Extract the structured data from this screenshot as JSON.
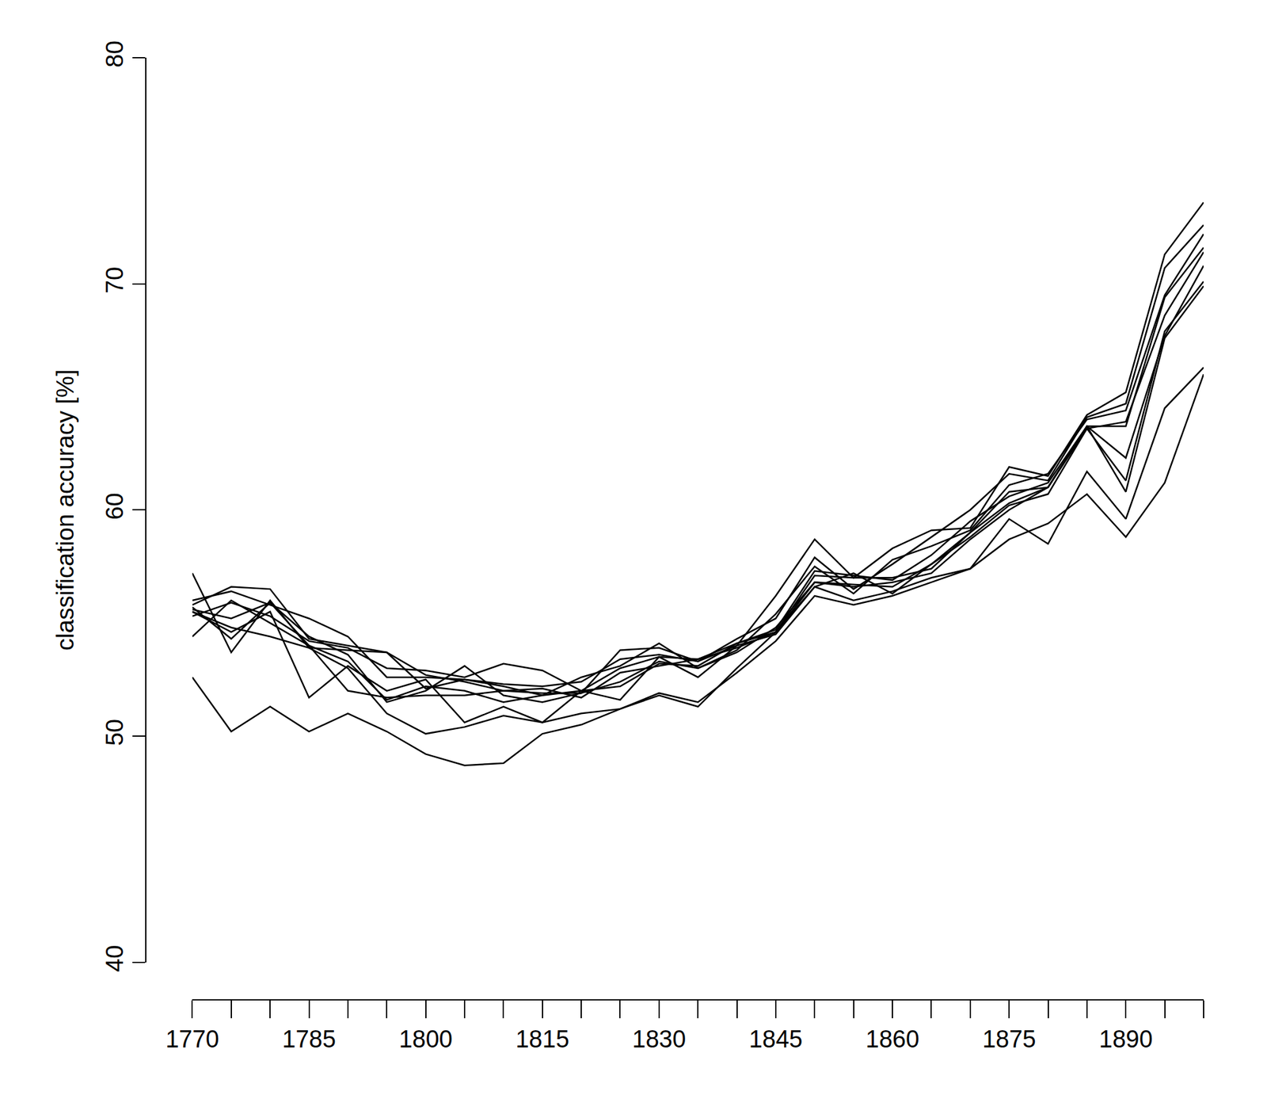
{
  "chart_data": {
    "type": "line",
    "y_label": "classification accuracy [%]",
    "color": "#000000",
    "x": [
      1770,
      1775,
      1780,
      1785,
      1790,
      1795,
      1800,
      1805,
      1810,
      1815,
      1820,
      1825,
      1830,
      1835,
      1840,
      1845,
      1850,
      1855,
      1860,
      1865,
      1870,
      1875,
      1880,
      1885,
      1890,
      1895,
      1900
    ],
    "xlim": [
      1770,
      1900
    ],
    "xticks": [
      1770,
      1785,
      1800,
      1815,
      1830,
      1845,
      1860,
      1875,
      1890
    ],
    "ylim": [
      40,
      80
    ],
    "yticks": [
      40,
      50,
      60,
      70,
      80
    ],
    "grid": false,
    "series": [
      {
        "values": [
          52.6,
          50.2,
          51.3,
          50.2,
          51.0,
          50.2,
          49.2,
          48.7,
          48.8,
          50.1,
          50.5,
          51.2,
          51.9,
          51.5,
          52.8,
          54.2,
          56.2,
          55.8,
          56.2,
          56.8,
          57.4,
          58.7,
          59.4,
          60.7,
          58.8,
          61.2,
          66.0
        ]
      },
      {
        "values": [
          55.5,
          54.8,
          54.4,
          53.9,
          53.0,
          51.0,
          50.1,
          50.4,
          50.9,
          50.6,
          51.0,
          51.2,
          51.8,
          51.3,
          53.0,
          54.6,
          56.6,
          56.0,
          56.4,
          57.0,
          57.4,
          59.6,
          58.5,
          61.7,
          59.6,
          64.5,
          66.3
        ]
      },
      {
        "values": [
          55.8,
          56.6,
          56.5,
          54.3,
          54.0,
          53.7,
          52.7,
          52.4,
          52.0,
          51.9,
          51.9,
          53.8,
          53.9,
          53.3,
          54.0,
          56.2,
          58.7,
          57.0,
          58.3,
          59.1,
          59.2,
          61.9,
          61.5,
          64.2,
          65.2,
          71.3,
          73.6
        ]
      },
      {
        "values": [
          56.0,
          56.4,
          55.8,
          55.2,
          54.4,
          52.6,
          52.6,
          52.5,
          52.3,
          52.2,
          52.4,
          53.4,
          53.6,
          53.3,
          54.3,
          55.2,
          57.9,
          56.5,
          57.6,
          58.8,
          60.0,
          61.6,
          61.3,
          64.1,
          64.7,
          70.7,
          72.6
        ]
      },
      {
        "values": [
          57.2,
          53.7,
          56.0,
          53.9,
          53.8,
          53.7,
          52.1,
          52.5,
          52.2,
          51.8,
          52.6,
          53.1,
          54.1,
          53.0,
          53.8,
          55.4,
          57.5,
          56.3,
          57.8,
          58.4,
          59.1,
          61.1,
          61.6,
          64.0,
          64.4,
          69.5,
          72.2
        ]
      },
      {
        "values": [
          55.3,
          55.9,
          55.3,
          54.2,
          53.9,
          53.0,
          52.9,
          52.6,
          53.2,
          52.9,
          52.0,
          53.0,
          53.5,
          53.4,
          54.1,
          54.7,
          57.3,
          57.1,
          56.9,
          58.0,
          59.5,
          60.6,
          61.2,
          63.7,
          63.7,
          69.4,
          71.6
        ]
      },
      {
        "values": [
          54.4,
          56.0,
          55.0,
          54.0,
          53.3,
          51.6,
          52.2,
          52.0,
          51.5,
          51.8,
          52.0,
          52.2,
          53.2,
          53.1,
          54.1,
          54.6,
          57.1,
          57.0,
          57.0,
          57.4,
          59.0,
          60.8,
          61.0,
          63.6,
          63.9,
          68.6,
          71.4
        ]
      },
      {
        "values": [
          55.7,
          54.3,
          55.9,
          54.4,
          53.6,
          51.5,
          52.0,
          53.1,
          51.8,
          51.5,
          51.9,
          52.4,
          53.3,
          53.0,
          53.7,
          54.8,
          56.8,
          56.7,
          56.6,
          57.6,
          59.0,
          60.3,
          61.0,
          63.7,
          62.3,
          67.7,
          70.8
        ]
      },
      {
        "values": [
          55.5,
          54.6,
          55.5,
          51.7,
          53.1,
          52.0,
          52.5,
          50.6,
          51.3,
          50.6,
          52.0,
          51.6,
          53.5,
          52.6,
          54.0,
          54.5,
          56.6,
          57.2,
          56.3,
          57.6,
          58.8,
          60.2,
          60.7,
          63.6,
          61.3,
          67.9,
          70.1
        ]
      },
      {
        "values": [
          55.6,
          55.2,
          55.9,
          54.0,
          52.0,
          51.7,
          51.8,
          51.8,
          52.0,
          52.1,
          51.7,
          52.8,
          53.1,
          53.4,
          53.9,
          54.6,
          56.8,
          56.6,
          56.8,
          57.2,
          58.7,
          60.0,
          61.0,
          63.7,
          60.8,
          67.6,
          69.9
        ]
      }
    ]
  }
}
